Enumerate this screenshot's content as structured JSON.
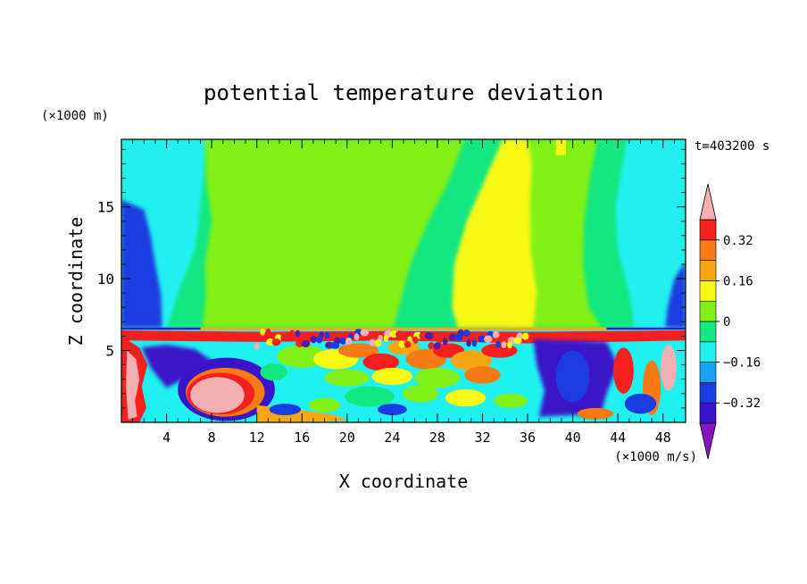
{
  "chart_data": {
    "type": "heatmap",
    "title": "potential temperature deviation",
    "xlabel": "X coordinate",
    "ylabel": "Z coordinate",
    "x_unit": "(×1000 m/s)",
    "y_unit": "(×1000 m)",
    "time_label": "t=403200 s",
    "xlim": [
      0,
      50
    ],
    "ylim": [
      0,
      19.7
    ],
    "x_ticks": [
      4,
      8,
      12,
      16,
      20,
      24,
      28,
      32,
      36,
      40,
      44,
      48
    ],
    "y_ticks": [
      5,
      10,
      15
    ],
    "colorbar": {
      "labels": [
        "0.32",
        "0.16",
        "0",
        "−0.16",
        "−0.32"
      ],
      "label_values": [
        0.32,
        0.16,
        0,
        -0.16,
        -0.32
      ],
      "levels": [
        -0.4,
        -0.32,
        -0.24,
        -0.16,
        -0.08,
        0,
        0.08,
        0.16,
        0.24,
        0.32,
        0.4
      ],
      "colors": [
        "#5a1aa8",
        "#3a14c8",
        "#1a3ce0",
        "#1aa0f0",
        "#20f0f0",
        "#14e882",
        "#80f018",
        "#f8f814",
        "#f8a614",
        "#f87a14",
        "#f42020",
        "#f4b0b0"
      ],
      "over_color": "#f4b0b0",
      "under_color": "#8a14c0"
    }
  }
}
